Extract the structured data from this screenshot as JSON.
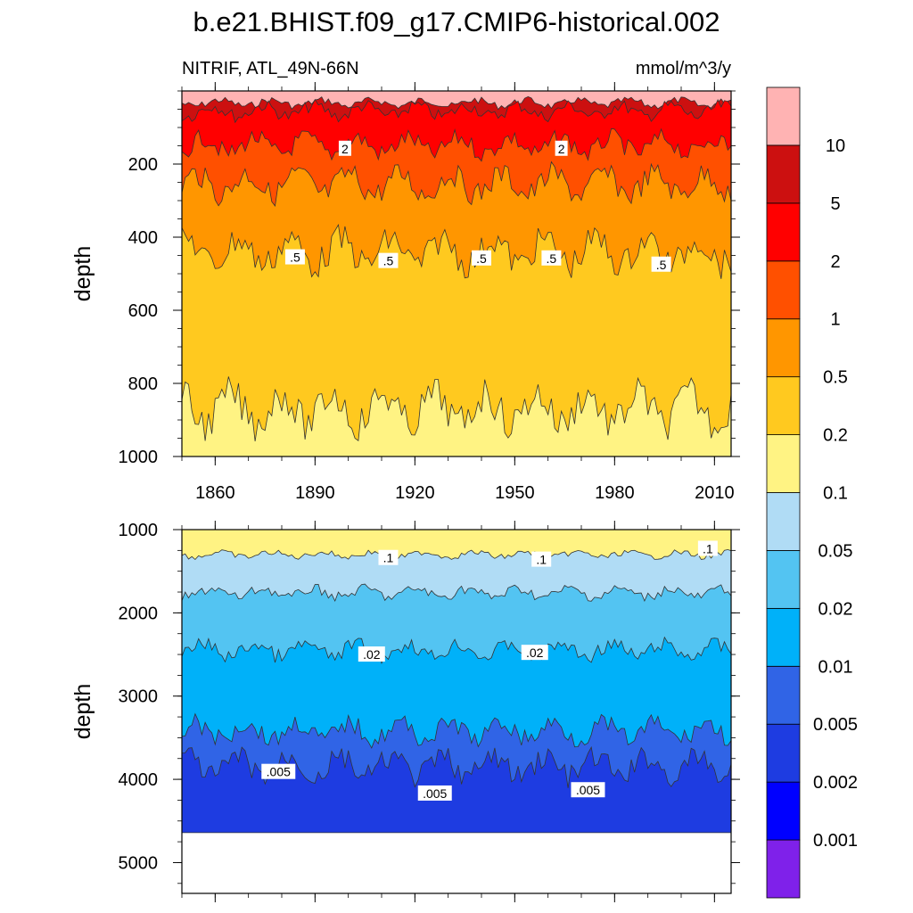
{
  "title": "b.e21.BHIST.f09_g17.CMIP6-historical.002",
  "subtitle_left": "NITRIF, ATL_49N-66N",
  "subtitle_right": "mmol/m^3/y",
  "chart_data": [
    {
      "type": "heatmap",
      "name": "upper",
      "xlabel": "",
      "ylabel": "depth",
      "xlim": [
        1850,
        2015
      ],
      "ylim": [
        1000,
        0
      ],
      "yticks": [
        200,
        400,
        600,
        800,
        1000
      ],
      "xticks": [
        1860,
        1890,
        1920,
        1950,
        1980,
        2010
      ],
      "contour_levels": [
        0.001,
        0.002,
        0.005,
        0.01,
        0.02,
        0.05,
        0.1,
        0.2,
        0.5,
        1,
        2,
        5,
        10
      ],
      "contour_depths": [
        {
          "level": 10,
          "depth": 33
        },
        {
          "level": 5,
          "depth": 55
        },
        {
          "level": 2,
          "depth": 150
        },
        {
          "level": 1,
          "depth": 255
        },
        {
          "level": 0.5,
          "depth": 440
        },
        {
          "level": 0.2,
          "depth": 870
        }
      ],
      "contour_labels": [
        {
          "text": "2",
          "x": 1899,
          "y": 158
        },
        {
          "text": "2",
          "x": 1964,
          "y": 158
        },
        {
          "text": ".5",
          "x": 1884,
          "y": 455
        },
        {
          "text": ".5",
          "x": 1912,
          "y": 465
        },
        {
          "text": ".5",
          "x": 1940,
          "y": 458
        },
        {
          "text": ".5",
          "x": 1961,
          "y": 458
        },
        {
          "text": ".5",
          "x": 1994,
          "y": 475
        }
      ]
    },
    {
      "type": "heatmap",
      "name": "lower",
      "xlabel": "",
      "ylabel": "depth",
      "xlim": [
        1850,
        2015
      ],
      "ylim": [
        5370,
        1000
      ],
      "yticks": [
        1000,
        2000,
        3000,
        4000,
        5000
      ],
      "xticks": [
        1860,
        1890,
        1920,
        1950,
        1980,
        2010
      ],
      "bottom_depth": 4640,
      "contour_depths": [
        {
          "level": 0.1,
          "depth": 1300
        },
        {
          "level": 0.05,
          "depth": 1760
        },
        {
          "level": 0.02,
          "depth": 2450
        },
        {
          "level": 0.01,
          "depth": 3420
        },
        {
          "level": 0.005,
          "depth": 3850
        }
      ],
      "contour_labels": [
        {
          "text": ".1",
          "x": 1912,
          "y": 1340
        },
        {
          "text": ".1",
          "x": 1958,
          "y": 1360
        },
        {
          "text": ".1",
          "x": 2008,
          "y": 1230
        },
        {
          "text": ".02",
          "x": 1907,
          "y": 2500
        },
        {
          "text": ".02",
          "x": 1956,
          "y": 2480
        },
        {
          "text": ".005",
          "x": 1879,
          "y": 3910
        },
        {
          "text": ".005",
          "x": 1926,
          "y": 4170
        },
        {
          "text": ".005",
          "x": 1972,
          "y": 4130
        }
      ]
    }
  ],
  "colorbar": {
    "colors": [
      "#7f21ea",
      "#0000ff",
      "#1e3ce1",
      "#3064e6",
      "#00b1f9",
      "#53c4f2",
      "#b0dcf5",
      "#fff383",
      "#ffc91f",
      "#ff9600",
      "#ff5000",
      "#ff0000",
      "#cc1010",
      "#ffb3b3"
    ],
    "labels": [
      "0.001",
      "0.002",
      "0.005",
      "0.01",
      "0.02",
      "0.05",
      "0.1",
      "0.2",
      "0.5",
      "1",
      "2",
      "5",
      "10"
    ]
  }
}
